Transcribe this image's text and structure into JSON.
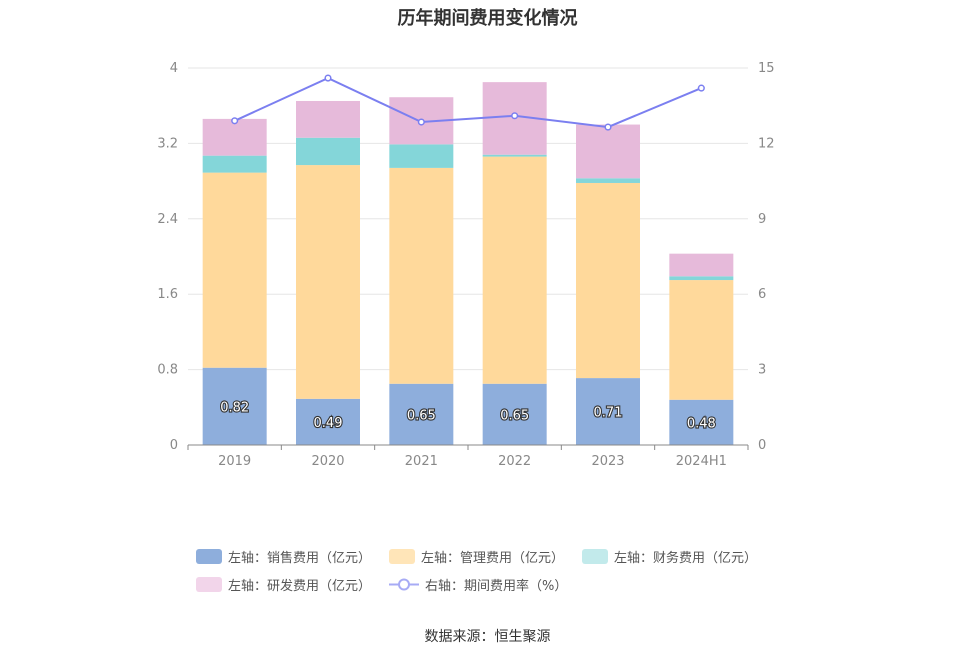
{
  "chart_data": {
    "type": "bar",
    "stacked": true,
    "title": "历年期间费用变化情况",
    "categories": [
      "2019",
      "2020",
      "2021",
      "2022",
      "2023",
      "2024H1"
    ],
    "y_left": {
      "ylim": [
        0,
        4
      ],
      "ticks": [
        "0",
        "0.8",
        "1.6",
        "2.4",
        "3.2",
        "4"
      ]
    },
    "y_right": {
      "ylim": [
        0,
        15
      ],
      "ticks": [
        "0",
        "3",
        "6",
        "9",
        "12",
        "15"
      ]
    },
    "grid": true,
    "legend_position": "bottom",
    "series": [
      {
        "name": "左轴：销售费用（亿元）",
        "axis": "left",
        "color": "#8eaedc",
        "values": [
          0.82,
          0.49,
          0.65,
          0.65,
          0.71,
          0.48
        ],
        "labels": [
          "0.82",
          "0.49",
          "0.65",
          "0.65",
          "0.71",
          "0.48"
        ]
      },
      {
        "name": "左轴：管理费用（亿元）",
        "axis": "left",
        "color": "#ffd99b",
        "values": [
          2.07,
          2.48,
          2.29,
          2.41,
          2.07,
          1.27
        ]
      },
      {
        "name": "左轴：财务费用（亿元）",
        "axis": "left",
        "color": "#84d6d9",
        "values": [
          0.18,
          0.29,
          0.25,
          0.02,
          0.05,
          0.04
        ]
      },
      {
        "name": "左轴：研发费用（亿元）",
        "axis": "left",
        "color": "#e6bada",
        "values": [
          0.39,
          0.39,
          0.5,
          0.77,
          0.57,
          0.24
        ]
      },
      {
        "name": "右轴：期间费用率（%）",
        "axis": "right",
        "type": "line",
        "color": "#7b7ff0",
        "values": [
          12.9,
          14.6,
          12.85,
          13.1,
          12.65,
          14.2
        ]
      }
    ]
  },
  "legend": {
    "row1": [
      "左轴：销售费用（亿元）",
      "左轴：管理费用（亿元）",
      "左轴：财务费用（亿元）"
    ],
    "row2": [
      "左轴：研发费用（亿元）",
      "右轴：期间费用率（%）"
    ],
    "colors": [
      "#8eaedc",
      "#ffe5b8",
      "#c2eaeb",
      "#f2d5ea",
      "#a7abf5"
    ]
  },
  "source": "数据来源：恒生聚源"
}
